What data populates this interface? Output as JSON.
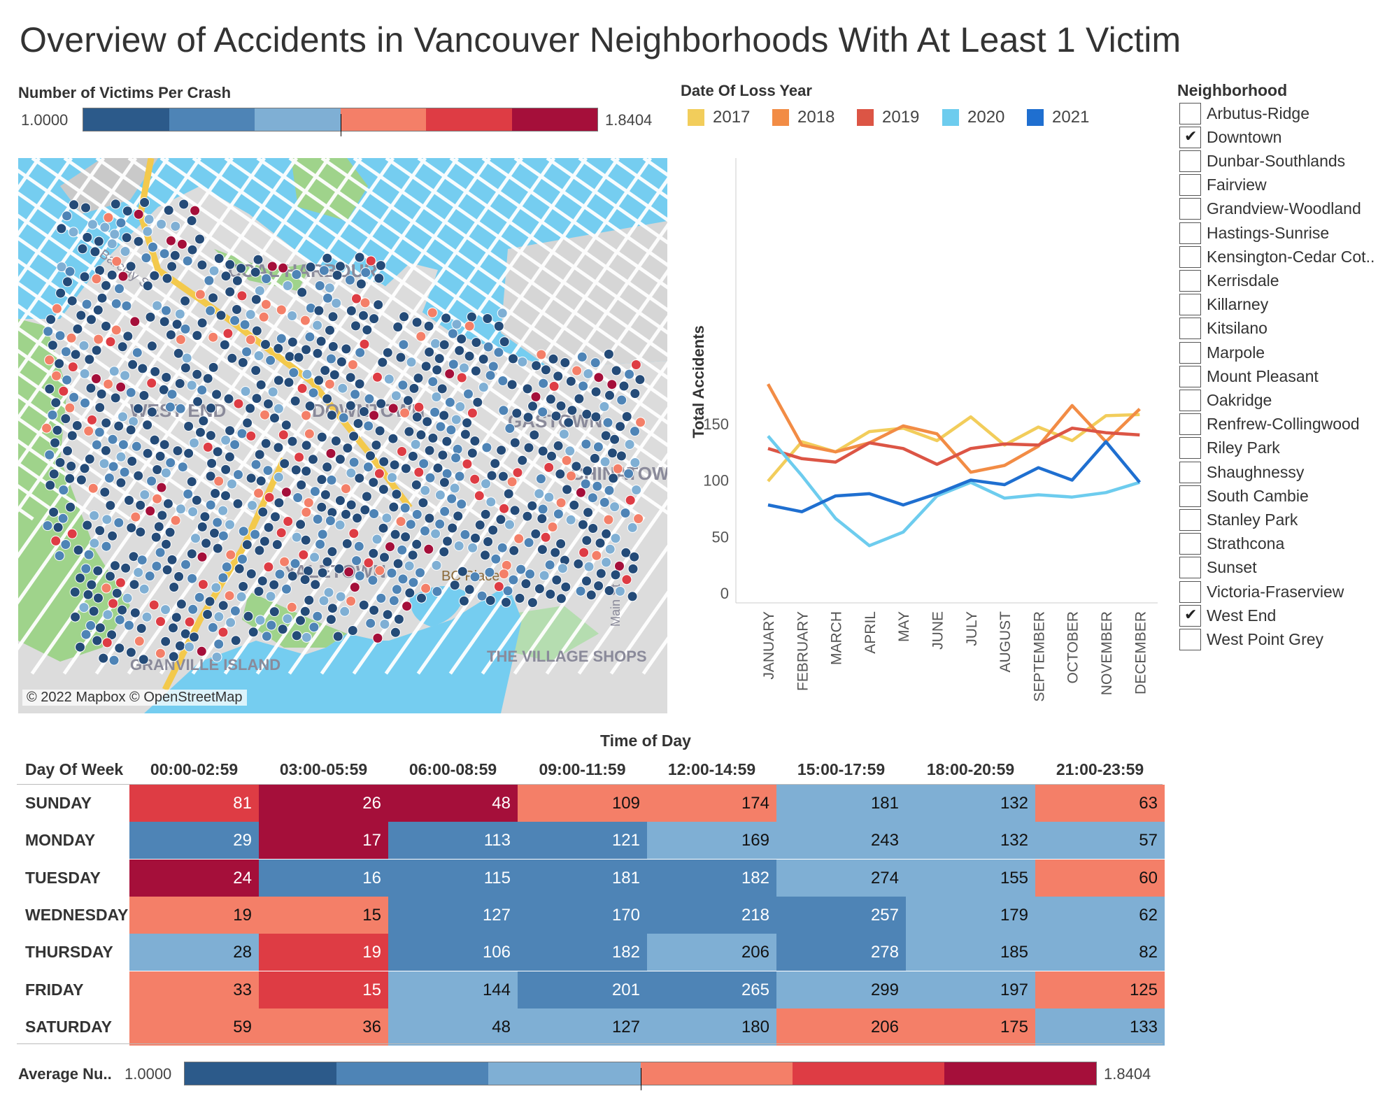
{
  "title": "Overview of Accidents in Vancouver Neighborhoods With At Least 1 Victim",
  "top_legend": {
    "title": "Number of Victims Per Crash",
    "min": "1.0000",
    "max": "1.8404",
    "colors": [
      "#2c5a8a",
      "#4e84b6",
      "#7fafd4",
      "#f47f68",
      "#de3c44",
      "#a50f3a"
    ]
  },
  "map": {
    "attribution": "© 2022 Mapbox © OpenStreetMap",
    "labels": [
      "COAL HARBOUR",
      "WEST END",
      "Barclay St",
      "DOWNTOWN",
      "GASTOWN",
      "CHINATOWN",
      "YALETOWN",
      "BC Place",
      "GRANVILLE ISLAND",
      "THE VILLAGE SHOPS",
      "Main St"
    ]
  },
  "year_legend": {
    "title": "Date Of Loss Year",
    "items": [
      {
        "label": "2017",
        "color": "#f2cd5b"
      },
      {
        "label": "2018",
        "color": "#f28c45"
      },
      {
        "label": "2019",
        "color": "#dc5545"
      },
      {
        "label": "2020",
        "color": "#6dccee"
      },
      {
        "label": "2021",
        "color": "#1f6fd0"
      }
    ]
  },
  "chart_data": {
    "type": "line",
    "ylabel": "Total Accidents",
    "xlabel": "",
    "ylim": [
      0,
      190
    ],
    "yticks": [
      0,
      50,
      100,
      150
    ],
    "grid": false,
    "legend": "top",
    "categories": [
      "JANUARY",
      "FEBRUARY",
      "MARCH",
      "APRIL",
      "MAY",
      "JUNE",
      "JULY",
      "AUGUST",
      "SEPTEMBER",
      "OCTOBER",
      "NOVEMBER",
      "DECEMBER"
    ],
    "series": [
      {
        "name": "2017",
        "color": "#f2cd5b",
        "values": [
          99,
          134,
          125,
          143,
          146,
          135,
          156,
          131,
          147,
          135,
          157,
          158
        ]
      },
      {
        "name": "2018",
        "color": "#f28c45",
        "values": [
          185,
          131,
          125,
          133,
          148,
          141,
          107,
          113,
          130,
          166,
          134,
          163
        ]
      },
      {
        "name": "2019",
        "color": "#dc5545",
        "values": [
          128,
          119,
          116,
          133,
          128,
          114,
          128,
          132,
          131,
          146,
          142,
          140
        ]
      },
      {
        "name": "2020",
        "color": "#6dccee",
        "values": [
          139,
          104,
          66,
          42,
          54,
          86,
          98,
          84,
          87,
          85,
          89,
          98
        ]
      },
      {
        "name": "2021",
        "color": "#1f6fd0",
        "values": [
          78,
          72,
          86,
          88,
          78,
          88,
          100,
          96,
          111,
          100,
          134,
          98
        ]
      }
    ]
  },
  "neighborhood_filter": {
    "title": "Neighborhood",
    "items": [
      {
        "label": "Arbutus-Ridge",
        "checked": false
      },
      {
        "label": "Downtown",
        "checked": true
      },
      {
        "label": "Dunbar-Southlands",
        "checked": false
      },
      {
        "label": "Fairview",
        "checked": false
      },
      {
        "label": "Grandview-Woodland",
        "checked": false
      },
      {
        "label": "Hastings-Sunrise",
        "checked": false
      },
      {
        "label": "Kensington-Cedar Cot..",
        "checked": false
      },
      {
        "label": "Kerrisdale",
        "checked": false
      },
      {
        "label": "Killarney",
        "checked": false
      },
      {
        "label": "Kitsilano",
        "checked": false
      },
      {
        "label": "Marpole",
        "checked": false
      },
      {
        "label": "Mount Pleasant",
        "checked": false
      },
      {
        "label": "Oakridge",
        "checked": false
      },
      {
        "label": "Renfrew-Collingwood",
        "checked": false
      },
      {
        "label": "Riley Park",
        "checked": false
      },
      {
        "label": "Shaughnessy",
        "checked": false
      },
      {
        "label": "South Cambie",
        "checked": false
      },
      {
        "label": "Stanley Park",
        "checked": false
      },
      {
        "label": "Strathcona",
        "checked": false
      },
      {
        "label": "Sunset",
        "checked": false
      },
      {
        "label": "Victoria-Fraserview",
        "checked": false
      },
      {
        "label": "West End",
        "checked": true
      },
      {
        "label": "West Point Grey",
        "checked": false
      }
    ],
    "check_glyph": "✔"
  },
  "heatmap": {
    "title": "Time of Day",
    "row_header": "Day Of Week",
    "columns": [
      "00:00-02:59",
      "03:00-05:59",
      "06:00-08:59",
      "09:00-11:59",
      "12:00-14:59",
      "15:00-17:59",
      "18:00-20:59",
      "21:00-23:59"
    ],
    "rows": [
      {
        "day": "SUNDAY",
        "values": [
          81,
          26,
          48,
          109,
          174,
          181,
          132,
          63
        ],
        "levels": [
          5,
          6,
          6,
          4,
          4,
          3,
          3,
          4
        ]
      },
      {
        "day": "MONDAY",
        "values": [
          29,
          17,
          113,
          121,
          169,
          243,
          132,
          57
        ],
        "levels": [
          2,
          6,
          2,
          2,
          3,
          3,
          3,
          3
        ]
      },
      {
        "day": "TUESDAY",
        "values": [
          24,
          16,
          115,
          181,
          182,
          274,
          155,
          60
        ],
        "levels": [
          6,
          2,
          2,
          2,
          2,
          3,
          3,
          4
        ]
      },
      {
        "day": "WEDNESDAY",
        "values": [
          19,
          15,
          127,
          170,
          218,
          257,
          179,
          62
        ],
        "levels": [
          4,
          4,
          2,
          2,
          2,
          2,
          3,
          3
        ]
      },
      {
        "day": "THURSDAY",
        "values": [
          28,
          19,
          106,
          182,
          206,
          278,
          185,
          82
        ],
        "levels": [
          3,
          5,
          2,
          2,
          3,
          2,
          3,
          3
        ]
      },
      {
        "day": "FRIDAY",
        "values": [
          33,
          15,
          144,
          201,
          265,
          299,
          197,
          125
        ],
        "levels": [
          4,
          5,
          3,
          2,
          2,
          3,
          3,
          4
        ]
      },
      {
        "day": "SATURDAY",
        "values": [
          59,
          36,
          48,
          127,
          180,
          206,
          175,
          133
        ],
        "levels": [
          4,
          4,
          3,
          3,
          3,
          4,
          4,
          3
        ]
      }
    ]
  },
  "bottom_legend": {
    "title": "Average Nu..",
    "min": "1.0000",
    "max": "1.8404"
  }
}
